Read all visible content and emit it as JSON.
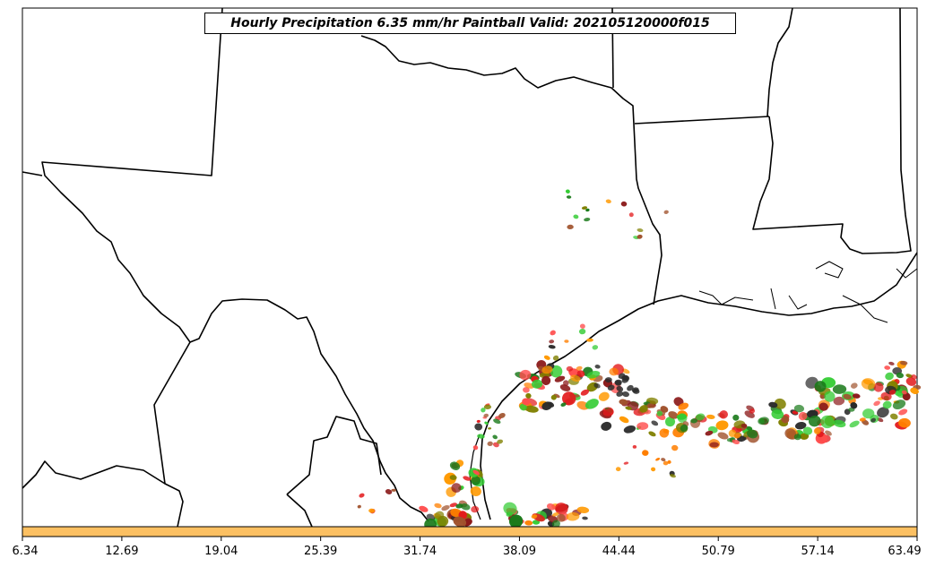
{
  "title": "Hourly Precipitation 6.35 mm/hr Paintball Valid: 202105120000f015",
  "colorbar": {
    "color": "#fcc062",
    "ticks": [
      "6.34",
      "12.69",
      "19.04",
      "25.39",
      "31.74",
      "38.09",
      "44.44",
      "50.79",
      "57.14",
      "63.49"
    ]
  },
  "map": {
    "region": "Texas / Louisiana / Gulf of Mexico",
    "border_color": "#000000",
    "background": "#ffffff"
  },
  "paintball_colors": [
    "#e31a1c",
    "#ff7f00",
    "#ff9900",
    "#33cc33",
    "#1a7a1a",
    "#8b1a1a",
    "#2b2b2b",
    "#808000",
    "#a0522d",
    "#ff4d4d"
  ]
}
